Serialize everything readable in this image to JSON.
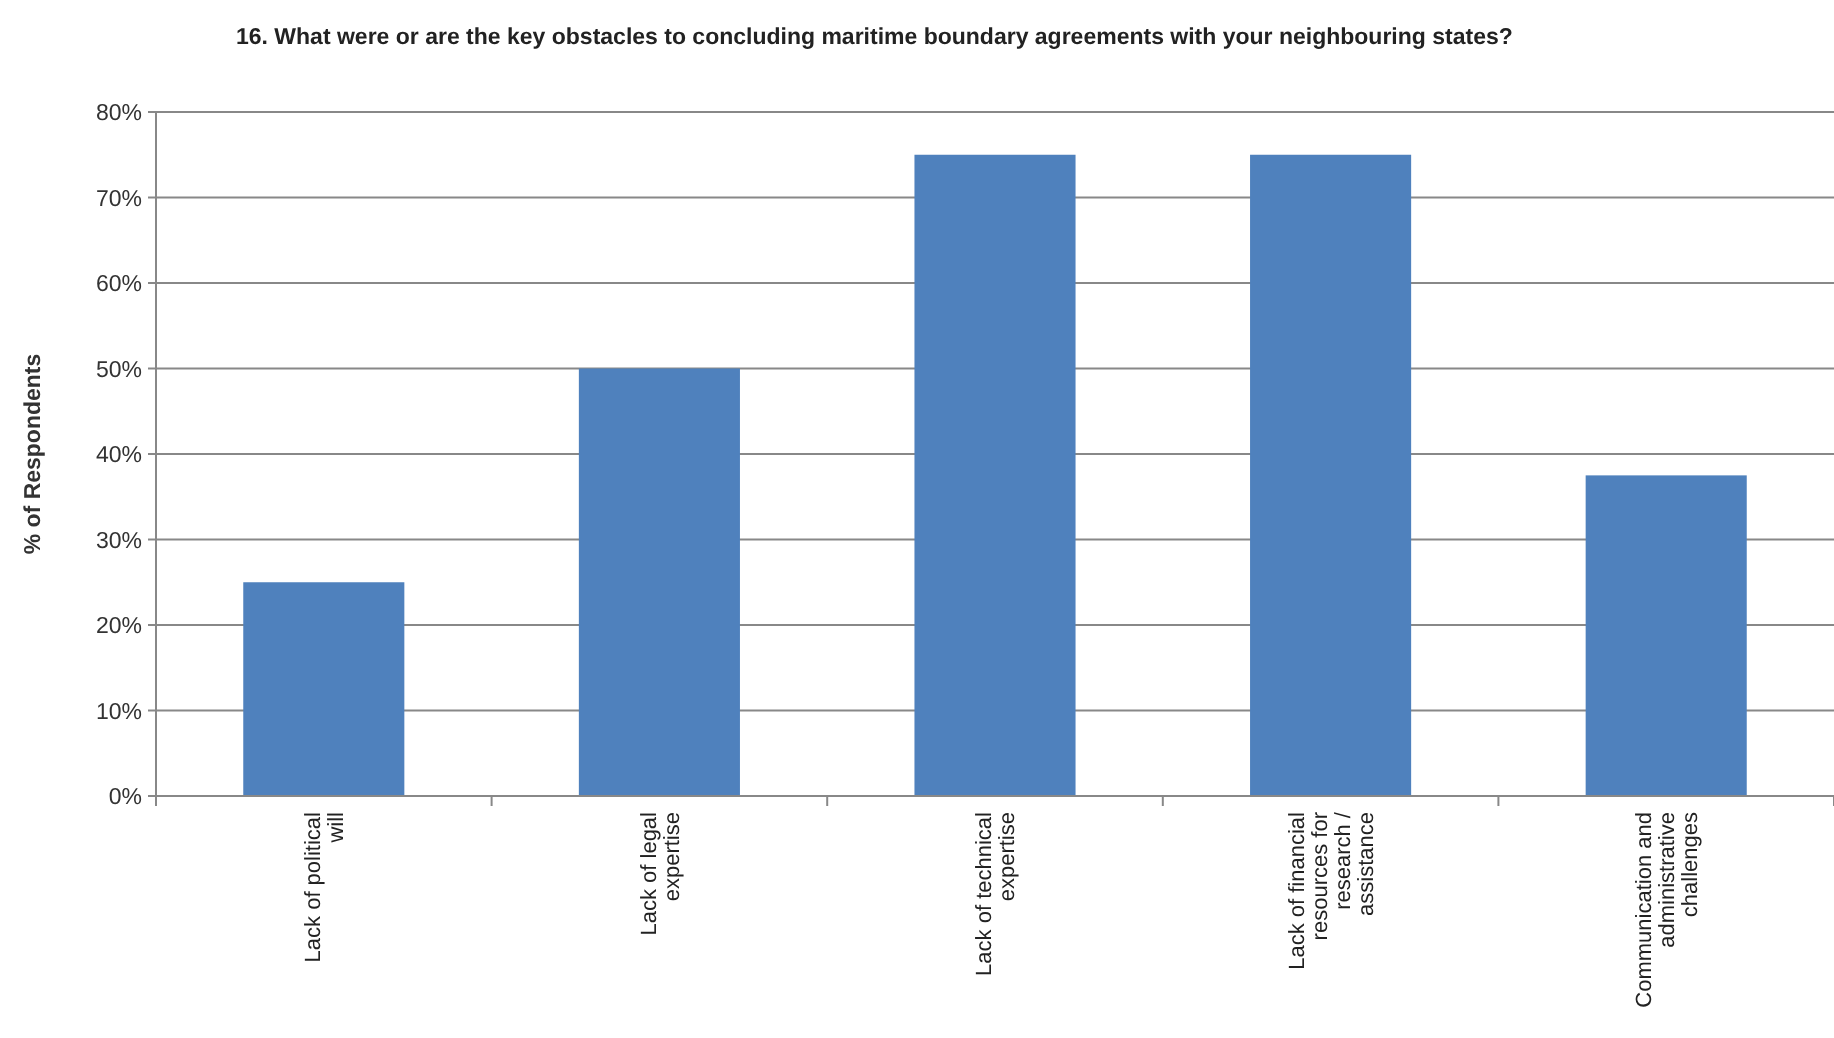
{
  "chart_data": {
    "type": "bar",
    "title": "16. What were or are the key obstacles to concluding maritime boundary agreements with your neighbouring states?",
    "ylabel": "% of Respondents",
    "categories": [
      "Lack of political will",
      "Lack of legal expertise",
      "Lack of technical expertise",
      "Lack of financial resources for research / assistance",
      "Communication and administrative challenges"
    ],
    "values": [
      25,
      50,
      75,
      75,
      37.5
    ],
    "color": "#4f81bd",
    "ylim": [
      0,
      80
    ],
    "yticks": [
      {
        "value": 0,
        "label": "0%"
      },
      {
        "value": 10,
        "label": "10%"
      },
      {
        "value": 20,
        "label": "20%"
      },
      {
        "value": 30,
        "label": "30%"
      },
      {
        "value": 40,
        "label": "40%"
      },
      {
        "value": 50,
        "label": "50%"
      },
      {
        "value": 60,
        "label": "60%"
      },
      {
        "value": 70,
        "label": "70%"
      },
      {
        "value": 80,
        "label": "80%"
      }
    ],
    "grid": "y"
  }
}
